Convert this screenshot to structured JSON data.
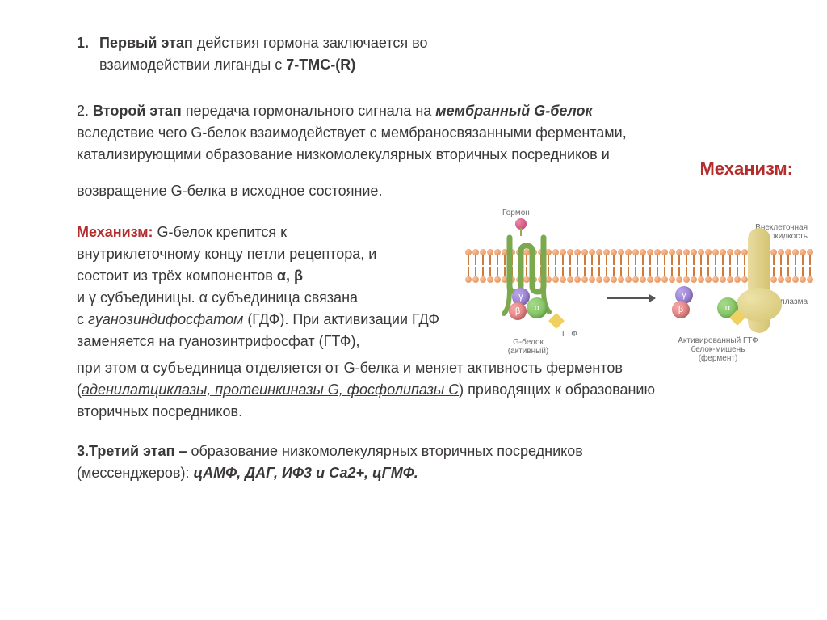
{
  "stage1": {
    "num": "1.",
    "bold": "Первый этап",
    "rest1": " действия гормона заключается во",
    "rest2": "взаимодействии лиганды с ",
    "term": "7-ТМС-(R)"
  },
  "stage2": {
    "num": "2. ",
    "bold": "Второй этап",
    "rest1": " передача гормонального сигнала на ",
    "term": "мембранный G-белок",
    "rest2": " вследствие чего G-белок взаимодействует с мембраносвязанными ферментами, катализирующими образование низкомолекулярных вторичных посредников и",
    "line2": "возвращение G-белка в исходное состояние."
  },
  "mechTitle": "Механизм:",
  "mech": {
    "label": "Механизм:",
    "p1a": " G-белок крепится к",
    "p1b": "внутриклеточному концу петли рецептора, и",
    "p1c": "состоит из трёх компонентов ",
    "alpha_beta": "α, β",
    "p1d": "и γ субъединицы. α субъединица связана",
    "p1e_pre": "с ",
    "gdf": "гуанозиндифосфатом",
    "p1e_post": " (ГДФ). При активизации ГДФ заменяется на гуанозинтрифосфат (ГТФ),",
    "p2a": "при этом α субъединица отделяется от G-белка и меняет активность ферментов (",
    "enz1": "аденилатциклазы,",
    "enz2": " протеинкиназы G, ",
    "enz3": "фосфолипазы С",
    "p2b": ") приводящих к образованию вторичных посредников."
  },
  "stage3": {
    "bold": "3.Третий этап –",
    "rest": " образование низкомолекулярных вторичных посредников (мессенджеров): ",
    "list": "цАМФ, ДАГ, ИФ3 и Са2+, цГМФ."
  },
  "diagram": {
    "hormone": "Гормон",
    "ext": "Внеклеточная жидкость",
    "cyto": "Цитоплазма",
    "gprotein": "G-белок (активный)",
    "gtp": "ГТФ",
    "target": "Активированный ГТФ белок-мишень (фермент)",
    "alpha": "α",
    "beta": "β",
    "gamma": "γ",
    "lipid_count": 48,
    "colors": {
      "lipid_head": "#e28b4f",
      "receptor": "#7ca84e",
      "alpha": "#6eb84a",
      "beta": "#d96a6a",
      "gamma": "#8a6ac2",
      "enzyme": "#d4c470",
      "hormone": "#c23b6a"
    }
  }
}
